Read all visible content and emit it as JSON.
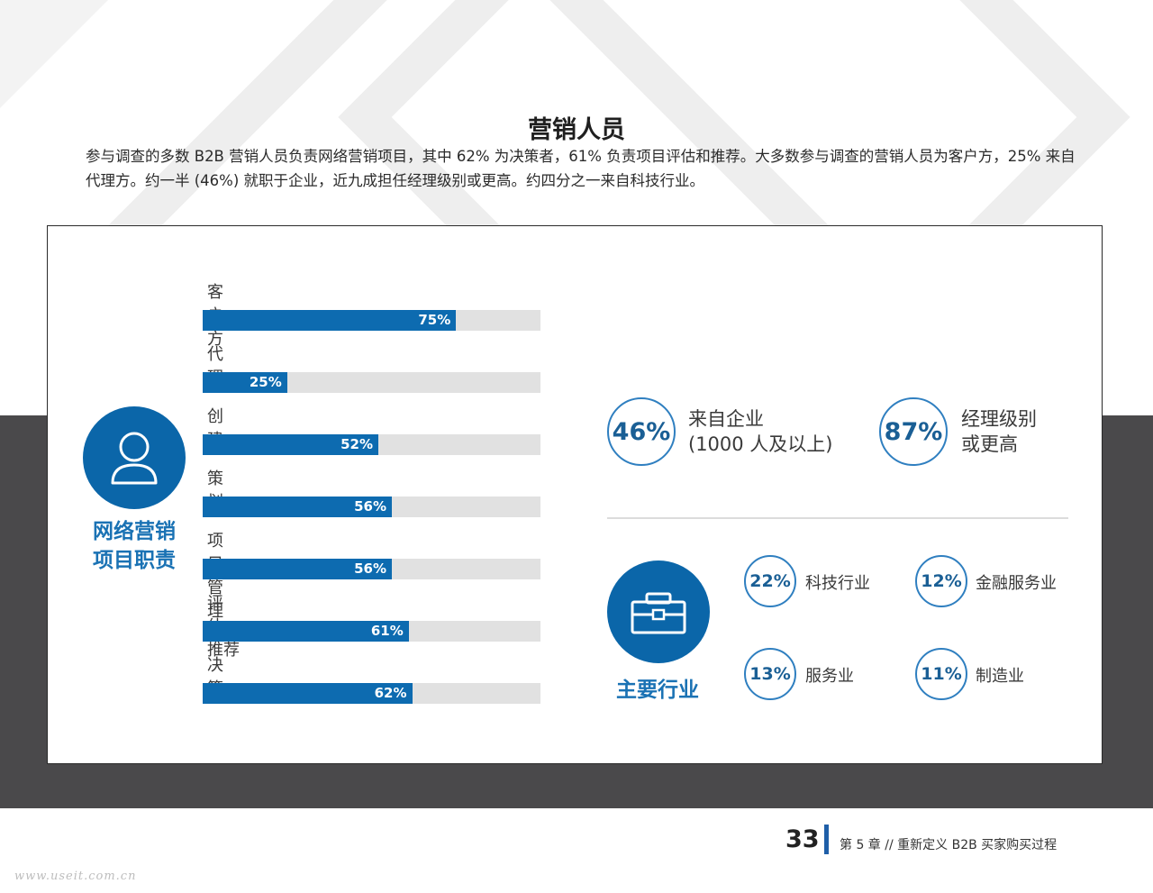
{
  "page": {
    "title": "营销人员",
    "intro": "参与调查的多数 B2B 营销人员负责网络营销项目，其中 62% 为决策者，61% 负责项目评估和推荐。大多数参与调查的营销人员为客户方，25% 来自代理方。约一半 (46%) 就职于企业，近九成担任经理级别或更高。约四分之一来自科技行业。"
  },
  "roles": {
    "label_line1": "网络营销",
    "label_line2": "项目职责",
    "icon": "person-icon"
  },
  "chart_data": {
    "type": "bar",
    "orientation": "horizontal",
    "categories": [
      "客户方",
      "代理",
      "创建",
      "策划",
      "项目管理",
      "评估、推荐",
      "决策"
    ],
    "values": [
      75,
      25,
      52,
      56,
      56,
      61,
      62
    ],
    "value_labels": [
      "75%",
      "25%",
      "52%",
      "56%",
      "56%",
      "61%",
      "62%"
    ],
    "xlim": [
      0,
      100
    ],
    "colors": {
      "fill": "#0d6bb0",
      "track": "#e1e1e1"
    }
  },
  "stats": [
    {
      "value": "46%",
      "line1": "来自企业",
      "line2": "(1000 人及以上)"
    },
    {
      "value": "87%",
      "line1": "经理级别",
      "line2": "或更高"
    }
  ],
  "industries": {
    "label": "主要行业",
    "icon": "briefcase-icon",
    "items": [
      {
        "value": "22%",
        "name": "科技行业"
      },
      {
        "value": "12%",
        "name": "金融服务业"
      },
      {
        "value": "13%",
        "name": "服务业"
      },
      {
        "value": "11%",
        "name": "制造业"
      }
    ]
  },
  "footer": {
    "page_number": "33",
    "chapter": "第 5 章 // 重新定义 B2B 买家购买过程",
    "watermark": "www.useit.com.cn"
  },
  "colors": {
    "accent": "#0b66a9",
    "label_blue": "#1a72b4",
    "band": "#4a494b"
  }
}
